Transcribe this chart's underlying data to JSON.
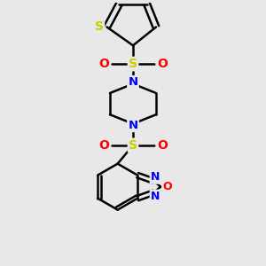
{
  "background_color": "#e8e8e8",
  "bond_color": "#000000",
  "S_color": "#cccc00",
  "O_color": "#ff0000",
  "N_color": "#0000ff",
  "figsize": [
    3.0,
    3.0
  ],
  "dpi": 100,
  "xlim": [
    -2.5,
    2.5
  ],
  "ylim": [
    -4.5,
    4.0
  ]
}
